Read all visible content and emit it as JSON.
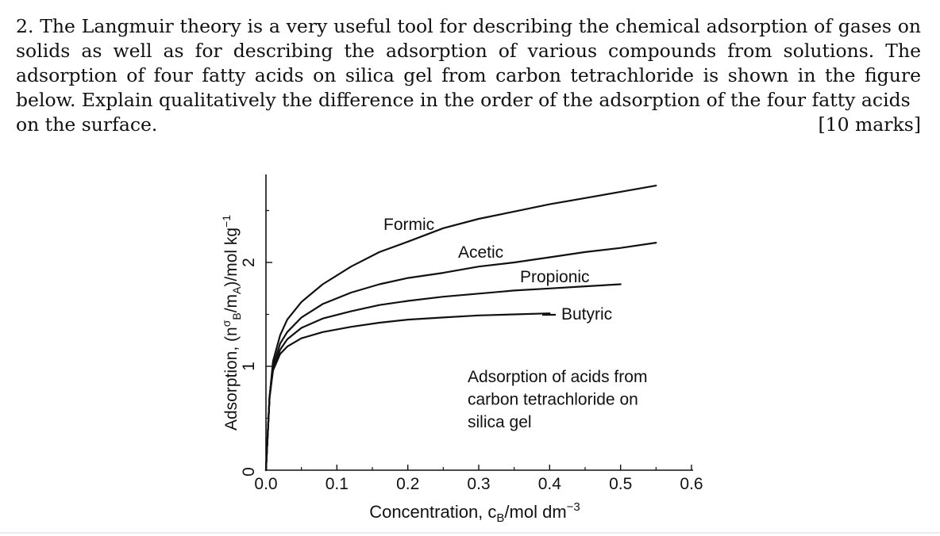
{
  "question": {
    "number": "2.",
    "text": "The Langmuir theory is a very useful tool for describing the chemical adsorption of gases on solids as well as for describing the adsorption of various compounds from solutions. The adsorption of four fatty acids on silica gel from carbon tetrachloride is shown in the figure below. Explain qualitatively the difference in the order of the adsorption of the four fatty acids",
    "text_end": "on the surface.",
    "marks": "[10 marks]"
  },
  "chart_data": {
    "type": "line",
    "title": "",
    "xlabel": "Concentration, c",
    "xlabel_sub": "B",
    "xlabel_unit": "/mol dm",
    "xlabel_sup": "−3",
    "ylabel": "Adsorption, (n",
    "ylabel_sup": "σ",
    "ylabel_sub": "B",
    "ylabel_mid": "/m",
    "ylabel_sub2": "A",
    "ylabel_unit": ")/mol kg",
    "ylabel_sup2": "−1",
    "xlim": [
      0,
      0.6
    ],
    "ylim": [
      0,
      2.8
    ],
    "x_ticks": [
      "0.0",
      "0.1",
      "0.2",
      "0.3",
      "0.4",
      "0.5",
      "0.6"
    ],
    "y_ticks": [
      "0",
      "1",
      "2"
    ],
    "annotation": [
      "Adsorption of acids from",
      "carbon tetrachloride on",
      "silica gel"
    ],
    "series": [
      {
        "name": "Formic",
        "x": [
          0,
          0.005,
          0.01,
          0.02,
          0.03,
          0.05,
          0.08,
          0.12,
          0.16,
          0.2,
          0.25,
          0.3,
          0.35,
          0.4,
          0.45,
          0.5,
          0.55
        ],
        "y": [
          0,
          0.7,
          1.05,
          1.3,
          1.45,
          1.62,
          1.79,
          1.96,
          2.1,
          2.2,
          2.33,
          2.42,
          2.49,
          2.56,
          2.62,
          2.68,
          2.74
        ]
      },
      {
        "name": "Acetic",
        "x": [
          0,
          0.005,
          0.01,
          0.02,
          0.03,
          0.05,
          0.08,
          0.12,
          0.16,
          0.2,
          0.25,
          0.3,
          0.35,
          0.4,
          0.45,
          0.5,
          0.55
        ],
        "y": [
          0,
          0.7,
          1.0,
          1.22,
          1.33,
          1.47,
          1.6,
          1.71,
          1.79,
          1.85,
          1.9,
          1.96,
          2.0,
          2.05,
          2.1,
          2.14,
          2.19
        ]
      },
      {
        "name": "Propionic",
        "x": [
          0,
          0.005,
          0.01,
          0.02,
          0.03,
          0.05,
          0.08,
          0.12,
          0.16,
          0.2,
          0.25,
          0.3,
          0.35,
          0.4,
          0.45,
          0.5
        ],
        "y": [
          0,
          0.7,
          0.98,
          1.16,
          1.26,
          1.37,
          1.46,
          1.53,
          1.59,
          1.63,
          1.67,
          1.7,
          1.73,
          1.75,
          1.77,
          1.79
        ]
      },
      {
        "name": "Butyric",
        "x": [
          0,
          0.005,
          0.01,
          0.02,
          0.03,
          0.05,
          0.08,
          0.12,
          0.16,
          0.2,
          0.25,
          0.3,
          0.35,
          0.4
        ],
        "y": [
          0,
          0.7,
          0.96,
          1.12,
          1.19,
          1.27,
          1.33,
          1.38,
          1.42,
          1.45,
          1.47,
          1.49,
          1.5,
          1.51
        ]
      }
    ]
  }
}
